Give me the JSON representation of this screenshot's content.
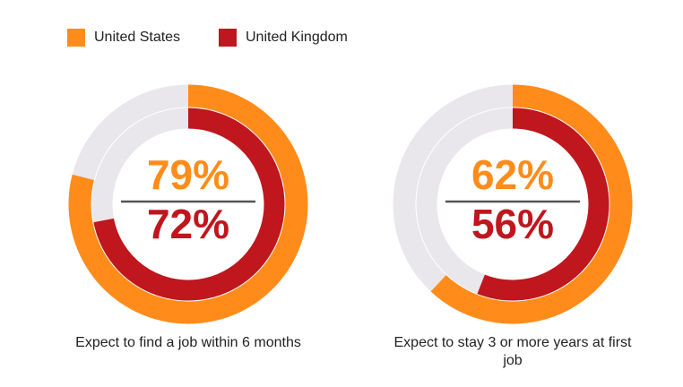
{
  "chart_data": {
    "type": "donut",
    "categories": [
      "Expect to find a job within 6 months",
      "Expect to stay 3 or more years at first job"
    ],
    "series": [
      {
        "name": "United States",
        "color": "#ff8c1a",
        "values": [
          79,
          62
        ],
        "value_labels": [
          "79%",
          "62%"
        ]
      },
      {
        "name": "United Kingdom",
        "color": "#c0161d",
        "values": [
          72,
          56
        ],
        "value_labels": [
          "72%",
          "56%"
        ]
      }
    ],
    "track_color": "#e9e7eb"
  }
}
